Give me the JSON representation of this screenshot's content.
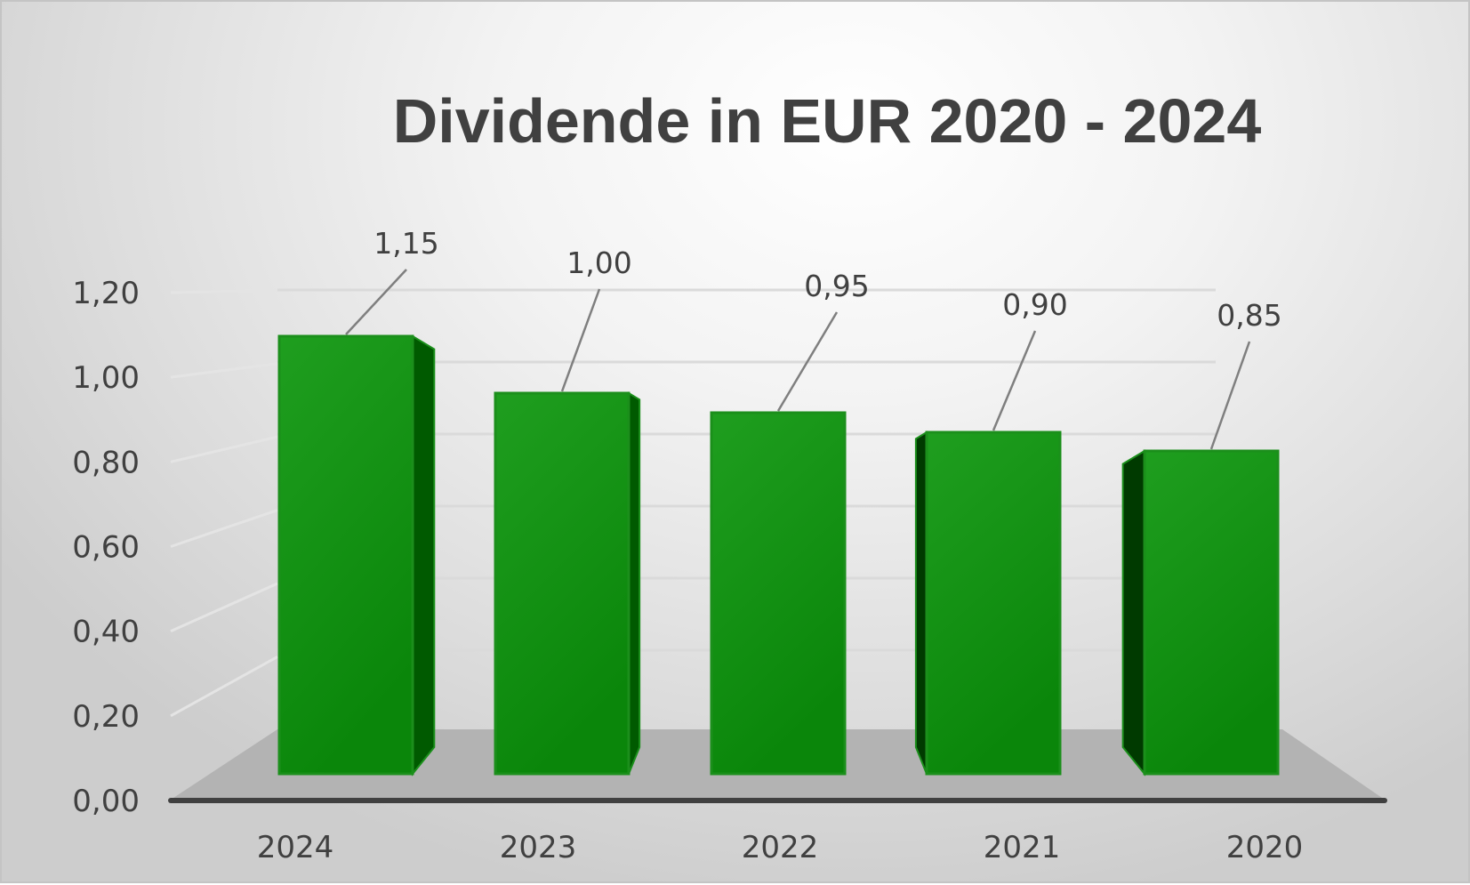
{
  "chart_data": {
    "type": "bar",
    "title": "Dividende in EUR 2020 - 2024",
    "categories": [
      "2024",
      "2023",
      "2022",
      "2021",
      "2020"
    ],
    "series": [
      {
        "values": [
          1.15,
          1.0,
          0.95,
          0.9,
          0.85
        ]
      }
    ],
    "data_labels": [
      "1,15",
      "1,00",
      "0,95",
      "0,90",
      "0,85"
    ],
    "y_ticks": [
      "0,00",
      "0,20",
      "0,40",
      "0,60",
      "0,80",
      "1,00",
      "1,20"
    ],
    "ylim": [
      0,
      1.2
    ],
    "xlabel": "",
    "ylabel": "",
    "style": "3d-column",
    "grid": true,
    "legend": "none",
    "colors": {
      "bar_front_top": "#2aa82a",
      "bar_front_bottom": "#0a8a0a",
      "bar_side": "#005a00",
      "bar_side_dark": "#003a00",
      "bar_outline": "#1b8f1b",
      "floor": "#b3b3b3",
      "axis": "#404040",
      "text": "#404040"
    }
  }
}
